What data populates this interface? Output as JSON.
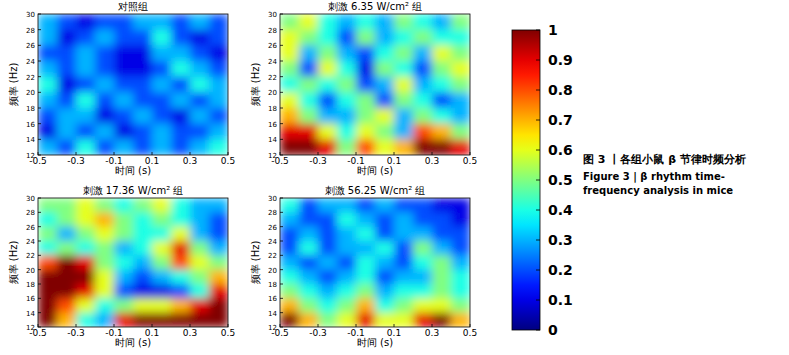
{
  "chart_data": [
    {
      "type": "heatmap",
      "title": "对照组",
      "x_label": "时间 (s)",
      "y_label": "频率 (Hz)",
      "xlim": [
        -0.5,
        0.5
      ],
      "ylim": [
        12,
        30
      ],
      "xticks": [
        -0.5,
        -0.3,
        -0.1,
        0.1,
        0.3,
        0.5
      ],
      "yticks": [
        12,
        14,
        16,
        18,
        20,
        22,
        24,
        26,
        28,
        30
      ],
      "x": [
        -0.45,
        -0.35,
        -0.25,
        -0.15,
        -0.05,
        0.05,
        0.15,
        0.25,
        0.35,
        0.45
      ],
      "y": [
        29,
        27,
        25,
        23,
        21,
        19,
        17,
        15,
        13
      ],
      "cells": [
        [
          0.3,
          0.2,
          0.1,
          0.2,
          0.2,
          0.3,
          0.3,
          0.2,
          0.3,
          0.2
        ],
        [
          0.3,
          0.1,
          0.2,
          0.3,
          0.2,
          0.2,
          0.4,
          0.2,
          0.1,
          0.2
        ],
        [
          0.2,
          0.2,
          0.3,
          0.2,
          0.1,
          0.1,
          0.3,
          0.3,
          0.2,
          0.1
        ],
        [
          0.3,
          0.2,
          0.3,
          0.2,
          0.1,
          0.1,
          0.2,
          0.4,
          0.3,
          0.2
        ],
        [
          0.4,
          0.1,
          0.2,
          0.3,
          0.2,
          0.2,
          0.3,
          0.2,
          0.4,
          0.3
        ],
        [
          0.3,
          0.2,
          0.4,
          0.2,
          0.3,
          0.2,
          0.2,
          0.3,
          0.2,
          0.3
        ],
        [
          0.2,
          0.3,
          0.3,
          0.1,
          0.2,
          0.3,
          0.2,
          0.1,
          0.3,
          0.2
        ],
        [
          0.1,
          0.3,
          0.2,
          0.3,
          0.1,
          0.2,
          0.3,
          0.2,
          0.2,
          0.3
        ],
        [
          0.3,
          0.2,
          0.4,
          0.2,
          0.3,
          0.2,
          0.3,
          0.2,
          0.3,
          0.4
        ]
      ]
    },
    {
      "type": "heatmap",
      "title": "刺激 6.35 W/cm² 组",
      "x_label": "时间 (s)",
      "y_label": "频率 (Hz)",
      "xlim": [
        -0.5,
        0.5
      ],
      "ylim": [
        12,
        30
      ],
      "xticks": [
        -0.5,
        -0.3,
        -0.1,
        0.1,
        0.3,
        0.5
      ],
      "yticks": [
        12,
        14,
        16,
        18,
        20,
        22,
        24,
        26,
        28,
        30
      ],
      "x": [
        -0.45,
        -0.35,
        -0.25,
        -0.15,
        -0.05,
        0.05,
        0.15,
        0.25,
        0.35,
        0.45
      ],
      "y": [
        29,
        27,
        25,
        23,
        21,
        19,
        17,
        15,
        13
      ],
      "cells": [
        [
          0.5,
          0.6,
          0.4,
          0.3,
          0.4,
          0.3,
          0.5,
          0.4,
          0.3,
          0.5
        ],
        [
          0.6,
          0.5,
          0.4,
          0.2,
          0.5,
          0.3,
          0.4,
          0.5,
          0.4,
          0.4
        ],
        [
          0.6,
          0.3,
          0.5,
          0.3,
          0.2,
          0.4,
          0.5,
          0.3,
          0.6,
          0.5
        ],
        [
          0.5,
          0.2,
          0.6,
          0.4,
          0.1,
          0.5,
          0.4,
          0.2,
          0.5,
          0.6
        ],
        [
          0.4,
          0.5,
          0.4,
          0.5,
          0.2,
          0.3,
          0.6,
          0.3,
          0.4,
          0.5
        ],
        [
          0.6,
          0.4,
          0.2,
          0.4,
          0.5,
          0.2,
          0.5,
          0.4,
          0.2,
          0.3
        ],
        [
          0.7,
          0.5,
          0.3,
          0.3,
          0.5,
          0.6,
          0.3,
          0.5,
          0.4,
          0.3
        ],
        [
          0.9,
          0.9,
          0.6,
          0.4,
          0.6,
          0.5,
          0.3,
          0.8,
          0.7,
          0.5
        ],
        [
          1.0,
          1.0,
          0.9,
          0.5,
          0.8,
          0.6,
          0.7,
          1.0,
          1.0,
          0.9
        ]
      ]
    },
    {
      "type": "heatmap",
      "title": "刺激 17.36 W/cm² 组",
      "x_label": "时间 (s)",
      "y_label": "频率 (Hz)",
      "xlim": [
        -0.5,
        0.5
      ],
      "ylim": [
        12,
        30
      ],
      "xticks": [
        -0.5,
        -0.3,
        -0.1,
        0.1,
        0.3,
        0.5
      ],
      "yticks": [
        12,
        14,
        16,
        18,
        20,
        22,
        24,
        26,
        28,
        30
      ],
      "x": [
        -0.45,
        -0.35,
        -0.25,
        -0.15,
        -0.05,
        0.05,
        0.15,
        0.25,
        0.35,
        0.45
      ],
      "y": [
        29,
        27,
        25,
        23,
        21,
        19,
        17,
        15,
        13
      ],
      "cells": [
        [
          0.5,
          0.5,
          0.6,
          0.5,
          0.4,
          0.5,
          0.6,
          0.4,
          0.3,
          0.3
        ],
        [
          0.4,
          0.5,
          0.6,
          0.7,
          0.5,
          0.4,
          0.5,
          0.4,
          0.3,
          0.2
        ],
        [
          0.5,
          0.3,
          0.5,
          0.6,
          0.5,
          0.4,
          0.4,
          0.6,
          0.3,
          0.2
        ],
        [
          0.4,
          0.5,
          0.4,
          0.5,
          0.3,
          0.4,
          0.6,
          0.9,
          0.5,
          0.3
        ],
        [
          0.8,
          1.0,
          0.9,
          0.5,
          0.4,
          0.3,
          0.5,
          0.8,
          0.6,
          0.5
        ],
        [
          1.0,
          1.0,
          1.0,
          0.6,
          0.3,
          0.2,
          0.3,
          0.4,
          0.5,
          0.7
        ],
        [
          1.0,
          1.0,
          0.9,
          0.6,
          0.2,
          0.1,
          0.1,
          0.2,
          0.4,
          0.9
        ],
        [
          1.0,
          0.8,
          0.6,
          0.4,
          0.5,
          0.6,
          0.6,
          0.7,
          0.9,
          1.0
        ],
        [
          1.0,
          0.7,
          0.4,
          0.3,
          0.9,
          1.0,
          1.0,
          1.0,
          1.0,
          1.0
        ]
      ]
    },
    {
      "type": "heatmap",
      "title": "刺激 56.25 W/cm² 组",
      "x_label": "时间 (s)",
      "y_label": "频率 (Hz)",
      "xlim": [
        -0.5,
        0.5
      ],
      "ylim": [
        12,
        30
      ],
      "xticks": [
        -0.5,
        -0.3,
        -0.1,
        0.1,
        0.3,
        0.5
      ],
      "yticks": [
        12,
        14,
        16,
        18,
        20,
        22,
        24,
        26,
        28,
        30
      ],
      "x": [
        -0.45,
        -0.35,
        -0.25,
        -0.15,
        -0.05,
        0.05,
        0.15,
        0.25,
        0.35,
        0.45
      ],
      "y": [
        29,
        27,
        25,
        23,
        21,
        19,
        17,
        15,
        13
      ],
      "cells": [
        [
          0.4,
          0.2,
          0.3,
          0.3,
          0.2,
          0.3,
          0.2,
          0.2,
          0.1,
          0.1
        ],
        [
          0.3,
          0.2,
          0.2,
          0.4,
          0.3,
          0.2,
          0.3,
          0.2,
          0.2,
          0.1
        ],
        [
          0.2,
          0.3,
          0.2,
          0.3,
          0.4,
          0.2,
          0.3,
          0.3,
          0.2,
          0.2
        ],
        [
          0.2,
          0.4,
          0.2,
          0.3,
          0.3,
          0.4,
          0.2,
          0.5,
          0.3,
          0.2
        ],
        [
          0.3,
          0.2,
          0.3,
          0.2,
          0.4,
          0.3,
          0.2,
          0.4,
          0.5,
          0.3
        ],
        [
          0.4,
          0.3,
          0.2,
          0.3,
          0.4,
          0.2,
          0.3,
          0.3,
          0.5,
          0.4
        ],
        [
          0.5,
          0.4,
          0.3,
          0.4,
          0.5,
          0.3,
          0.4,
          0.4,
          0.5,
          0.4
        ],
        [
          0.7,
          0.5,
          0.4,
          0.5,
          0.7,
          0.4,
          0.5,
          0.6,
          0.6,
          0.5
        ],
        [
          1.0,
          0.7,
          0.5,
          0.6,
          0.9,
          0.6,
          0.6,
          0.9,
          1.0,
          0.7
        ]
      ]
    }
  ],
  "colorbar": {
    "range": [
      0,
      1
    ],
    "ticks": [
      0,
      0.1,
      0.2,
      0.3,
      0.4,
      0.5,
      0.6,
      0.7,
      0.8,
      0.9,
      1
    ]
  },
  "caption": {
    "zh": "图 3 丨各组小鼠 β 节律时频分析",
    "en": [
      "Figure 3 | β rhythm time-",
      "frequency analysis in mice"
    ]
  }
}
